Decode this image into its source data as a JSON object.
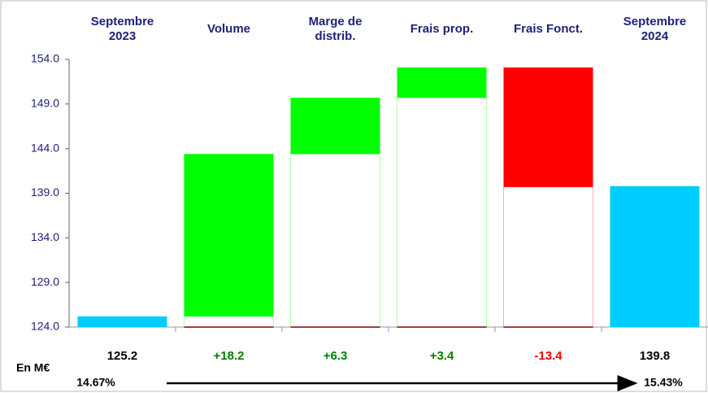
{
  "chart_data": {
    "type": "waterfall",
    "categories": [
      "Septembre\n2023",
      "Volume",
      "Marge de\ndistrib.",
      "Frais prop.",
      "Frais Fonct.",
      "Septembre\n2024"
    ],
    "values": [
      125.2,
      18.2,
      6.3,
      3.4,
      -13.4,
      139.8
    ],
    "value_labels": [
      "125.2",
      "+18.2",
      "+6.3",
      "+3.4",
      "-13.4",
      "139.8"
    ],
    "total_indices": [
      0,
      5
    ],
    "total_color": "#00ccff",
    "increase_color": "#00ff00",
    "decrease_color": "#ff0000",
    "total_label_color": "#000000",
    "increase_label_color": "#008000",
    "decrease_label_color": "#ff0000",
    "ylim": [
      124,
      154
    ],
    "yticks": [
      {
        "value": 124,
        "label": "124.0"
      },
      {
        "value": 129,
        "label": "129.0"
      },
      {
        "value": 134,
        "label": "134.0"
      },
      {
        "value": 139,
        "label": "139.0"
      },
      {
        "value": 144,
        "label": "144.0"
      },
      {
        "value": 149,
        "label": "149.0"
      },
      {
        "value": 154,
        "label": "154.0"
      }
    ],
    "unit_label": "En M€",
    "start_note": "14.67%",
    "end_note": "15.43%"
  }
}
